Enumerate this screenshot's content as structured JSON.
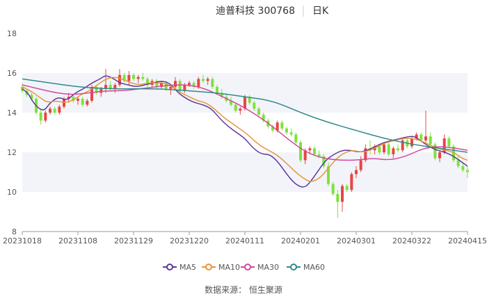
{
  "header": {
    "stock_title": "迪普科技 300768",
    "period": "日K"
  },
  "source": "数据来源： 恒生聚源",
  "colors": {
    "up": "#e84545",
    "down": "#7ee23c",
    "ma5": "#5b3a9a",
    "ma10": "#e8953a",
    "ma30": "#d2489a",
    "ma60": "#2f8a8a",
    "band": "#f2f4f9",
    "axis": "#999999",
    "text": "#555555"
  },
  "chart_data": {
    "type": "candlestick",
    "title": "迪普科技 300768 日K",
    "xlabel": "",
    "ylabel": "",
    "ylim": [
      8,
      18
    ],
    "yticks": [
      8,
      10,
      12,
      14,
      16,
      18
    ],
    "xticks": [
      "20231018",
      "20231108",
      "20231129",
      "20231220",
      "20240111",
      "20240201",
      "20240301",
      "20240322",
      "20240415"
    ],
    "legend": {
      "position": "bottom",
      "entries": [
        "MA5",
        "MA10",
        "MA30",
        "MA60"
      ]
    },
    "grid": false,
    "ma_series": [
      {
        "name": "MA5",
        "points": [
          [
            0,
            15.2
          ],
          [
            2,
            15.0
          ],
          [
            4,
            14.5
          ],
          [
            6,
            14.2
          ],
          [
            8,
            14.1
          ],
          [
            10,
            14.5
          ],
          [
            13,
            14.8
          ],
          [
            16,
            14.6
          ],
          [
            19,
            15.0
          ],
          [
            22,
            15.2
          ],
          [
            25,
            15.5
          ],
          [
            28,
            15.7
          ],
          [
            30,
            15.9
          ],
          [
            33,
            15.7
          ],
          [
            35,
            15.5
          ],
          [
            38,
            15.4
          ],
          [
            41,
            15.3
          ],
          [
            44,
            15.4
          ],
          [
            47,
            15.5
          ],
          [
            50,
            15.6
          ],
          [
            53,
            15.5
          ],
          [
            56,
            15.0
          ],
          [
            59,
            14.7
          ],
          [
            62,
            14.5
          ],
          [
            65,
            14.4
          ],
          [
            68,
            14.2
          ],
          [
            71,
            13.7
          ],
          [
            74,
            13.3
          ],
          [
            77,
            13.0
          ],
          [
            80,
            12.7
          ],
          [
            83,
            12.2
          ],
          [
            86,
            11.9
          ],
          [
            89,
            11.9
          ],
          [
            92,
            11.5
          ],
          [
            95,
            10.9
          ],
          [
            98,
            10.4
          ],
          [
            101,
            10.2
          ],
          [
            103,
            10.4
          ],
          [
            106,
            11.0
          ],
          [
            109,
            11.6
          ],
          [
            112,
            11.9
          ],
          [
            115,
            12.1
          ],
          [
            118,
            12.1
          ],
          [
            121,
            12.0
          ],
          [
            124,
            12.1
          ],
          [
            127,
            12.3
          ],
          [
            130,
            12.5
          ],
          [
            133,
            12.6
          ],
          [
            136,
            12.7
          ],
          [
            139,
            12.8
          ],
          [
            141,
            12.8
          ],
          [
            143,
            12.6
          ],
          [
            146,
            12.3
          ],
          [
            149,
            12.1
          ],
          [
            152,
            12.0
          ],
          [
            155,
            11.8
          ],
          [
            158,
            11.5
          ],
          [
            160,
            11.3
          ]
        ]
      },
      {
        "name": "MA10",
        "points": [
          [
            0,
            15.3
          ],
          [
            3,
            15.1
          ],
          [
            6,
            14.8
          ],
          [
            9,
            14.5
          ],
          [
            12,
            14.6
          ],
          [
            15,
            14.5
          ],
          [
            18,
            14.6
          ],
          [
            21,
            14.9
          ],
          [
            24,
            15.1
          ],
          [
            27,
            15.4
          ],
          [
            30,
            15.7
          ],
          [
            33,
            15.8
          ],
          [
            36,
            15.7
          ],
          [
            39,
            15.5
          ],
          [
            42,
            15.4
          ],
          [
            45,
            15.5
          ],
          [
            48,
            15.5
          ],
          [
            51,
            15.5
          ],
          [
            54,
            15.3
          ],
          [
            57,
            15.0
          ],
          [
            60,
            14.8
          ],
          [
            63,
            14.6
          ],
          [
            66,
            14.5
          ],
          [
            69,
            14.2
          ],
          [
            72,
            13.8
          ],
          [
            75,
            13.5
          ],
          [
            78,
            13.2
          ],
          [
            81,
            12.9
          ],
          [
            84,
            12.5
          ],
          [
            87,
            12.2
          ],
          [
            90,
            12.0
          ],
          [
            93,
            11.7
          ],
          [
            96,
            11.3
          ],
          [
            99,
            10.9
          ],
          [
            102,
            10.6
          ],
          [
            104,
            10.5
          ],
          [
            107,
            10.7
          ],
          [
            110,
            11.2
          ],
          [
            113,
            11.7
          ],
          [
            116,
            12.0
          ],
          [
            119,
            12.1
          ],
          [
            122,
            12.0
          ],
          [
            125,
            12.1
          ],
          [
            128,
            12.3
          ],
          [
            131,
            12.5
          ],
          [
            134,
            12.6
          ],
          [
            137,
            12.7
          ],
          [
            140,
            12.7
          ],
          [
            143,
            12.6
          ],
          [
            146,
            12.4
          ],
          [
            149,
            12.2
          ],
          [
            152,
            12.1
          ],
          [
            155,
            12.0
          ],
          [
            158,
            11.7
          ],
          [
            160,
            11.6
          ]
        ]
      },
      {
        "name": "MA30",
        "points": [
          [
            0,
            15.4
          ],
          [
            6,
            15.2
          ],
          [
            12,
            15.0
          ],
          [
            18,
            14.9
          ],
          [
            24,
            15.0
          ],
          [
            30,
            15.1
          ],
          [
            36,
            15.1
          ],
          [
            42,
            15.2
          ],
          [
            48,
            15.3
          ],
          [
            54,
            15.4
          ],
          [
            60,
            15.4
          ],
          [
            66,
            15.2
          ],
          [
            72,
            14.8
          ],
          [
            78,
            14.4
          ],
          [
            84,
            13.9
          ],
          [
            90,
            13.3
          ],
          [
            96,
            12.6
          ],
          [
            102,
            12.0
          ],
          [
            108,
            11.7
          ],
          [
            114,
            11.6
          ],
          [
            120,
            11.6
          ],
          [
            126,
            11.7
          ],
          [
            132,
            11.6
          ],
          [
            138,
            11.8
          ],
          [
            144,
            12.2
          ],
          [
            150,
            12.3
          ],
          [
            156,
            12.2
          ],
          [
            160,
            12.1
          ]
        ]
      },
      {
        "name": "MA60",
        "points": [
          [
            0,
            15.7
          ],
          [
            10,
            15.5
          ],
          [
            20,
            15.3
          ],
          [
            30,
            15.2
          ],
          [
            40,
            15.2
          ],
          [
            50,
            15.2
          ],
          [
            60,
            15.1
          ],
          [
            70,
            15.0
          ],
          [
            80,
            14.8
          ],
          [
            90,
            14.6
          ],
          [
            100,
            14.0
          ],
          [
            110,
            13.5
          ],
          [
            120,
            13.1
          ],
          [
            130,
            12.7
          ],
          [
            140,
            12.4
          ],
          [
            150,
            12.2
          ],
          [
            160,
            12.0
          ]
        ]
      }
    ],
    "candles": [
      [
        0,
        15.3,
        15.5,
        15.0,
        15.1
      ],
      [
        1,
        15.1,
        15.2,
        14.8,
        14.9
      ],
      [
        2,
        14.9,
        15.0,
        14.6,
        14.7
      ],
      [
        3,
        14.7,
        14.8,
        13.9,
        14.0
      ],
      [
        4,
        14.0,
        14.2,
        13.4,
        13.6
      ],
      [
        5,
        13.6,
        14.1,
        13.5,
        14.0
      ],
      [
        6,
        14.0,
        14.3,
        13.9,
        14.2
      ],
      [
        7,
        14.2,
        14.3,
        13.9,
        14.0
      ],
      [
        8,
        14.0,
        14.4,
        13.9,
        14.3
      ],
      [
        9,
        14.3,
        14.8,
        14.2,
        14.7
      ],
      [
        10,
        14.7,
        15.0,
        14.5,
        14.8
      ],
      [
        11,
        14.8,
        14.9,
        14.5,
        14.6
      ],
      [
        12,
        14.6,
        14.8,
        14.4,
        14.7
      ],
      [
        13,
        14.7,
        14.8,
        14.3,
        14.4
      ],
      [
        14,
        14.4,
        14.7,
        14.3,
        14.6
      ],
      [
        15,
        14.6,
        15.4,
        14.5,
        15.3
      ],
      [
        16,
        15.3,
        15.4,
        14.9,
        15.0
      ],
      [
        17,
        15.0,
        15.3,
        14.8,
        15.2
      ],
      [
        18,
        15.2,
        16.2,
        15.0,
        15.4
      ],
      [
        19,
        15.4,
        15.6,
        15.1,
        15.2
      ],
      [
        20,
        15.2,
        15.5,
        15.0,
        15.4
      ],
      [
        21,
        15.4,
        16.2,
        15.3,
        15.9
      ],
      [
        22,
        15.9,
        16.0,
        15.5,
        15.6
      ],
      [
        23,
        15.6,
        16.1,
        15.4,
        15.9
      ],
      [
        24,
        15.9,
        16.0,
        15.6,
        15.7
      ],
      [
        25,
        15.7,
        15.9,
        15.5,
        15.8
      ],
      [
        26,
        15.8,
        16.0,
        15.6,
        15.7
      ],
      [
        27,
        15.7,
        15.8,
        15.3,
        15.4
      ],
      [
        28,
        15.4,
        15.7,
        15.3,
        15.6
      ],
      [
        29,
        15.6,
        15.7,
        15.2,
        15.3
      ],
      [
        30,
        15.3,
        15.6,
        15.2,
        15.5
      ],
      [
        31,
        15.5,
        15.6,
        15.1,
        15.2
      ],
      [
        32,
        15.2,
        15.4,
        14.9,
        15.3
      ],
      [
        33,
        15.3,
        15.8,
        15.2,
        15.6
      ],
      [
        34,
        15.6,
        15.7,
        15.0,
        15.1
      ],
      [
        35,
        15.1,
        15.5,
        15.0,
        15.4
      ],
      [
        36,
        15.4,
        15.6,
        15.3,
        15.5
      ],
      [
        37,
        15.5,
        15.6,
        15.2,
        15.3
      ],
      [
        38,
        15.3,
        15.8,
        15.2,
        15.7
      ],
      [
        39,
        15.7,
        15.9,
        15.5,
        15.6
      ],
      [
        40,
        15.6,
        15.8,
        15.4,
        15.7
      ],
      [
        41,
        15.7,
        15.8,
        15.2,
        15.3
      ],
      [
        42,
        15.3,
        15.4,
        14.9,
        15.0
      ],
      [
        43,
        15.0,
        15.2,
        14.7,
        14.8
      ],
      [
        44,
        14.8,
        15.0,
        14.5,
        14.6
      ],
      [
        45,
        14.6,
        14.8,
        14.3,
        14.4
      ],
      [
        46,
        14.4,
        14.5,
        14.0,
        14.1
      ],
      [
        47,
        14.1,
        14.3,
        13.9,
        14.2
      ],
      [
        48,
        14.2,
        14.9,
        14.1,
        14.8
      ],
      [
        49,
        14.8,
        14.9,
        14.4,
        14.5
      ],
      [
        50,
        14.5,
        14.6,
        14.1,
        14.2
      ],
      [
        51,
        14.2,
        14.3,
        13.8,
        13.9
      ],
      [
        52,
        13.9,
        14.0,
        13.5,
        13.6
      ],
      [
        53,
        13.6,
        13.7,
        13.2,
        13.3
      ],
      [
        54,
        13.3,
        13.4,
        13.0,
        13.1
      ],
      [
        55,
        13.1,
        13.6,
        13.0,
        13.5
      ],
      [
        56,
        13.5,
        13.6,
        13.1,
        13.2
      ],
      [
        57,
        13.2,
        13.3,
        12.9,
        13.0
      ],
      [
        58,
        13.0,
        13.2,
        12.8,
        12.9
      ],
      [
        59,
        12.9,
        13.0,
        12.4,
        12.5
      ],
      [
        60,
        12.5,
        12.6,
        11.5,
        11.6
      ],
      [
        61,
        11.6,
        12.2,
        11.4,
        12.1
      ],
      [
        62,
        12.1,
        12.3,
        11.9,
        12.2
      ],
      [
        63,
        12.2,
        12.3,
        11.8,
        11.9
      ],
      [
        64,
        11.9,
        12.1,
        11.7,
        11.8
      ],
      [
        65,
        11.8,
        11.9,
        11.2,
        11.3
      ],
      [
        66,
        11.3,
        11.5,
        10.3,
        10.4
      ],
      [
        67,
        10.4,
        10.5,
        9.8,
        9.9
      ],
      [
        68,
        9.9,
        10.1,
        8.7,
        9.5
      ],
      [
        69,
        9.5,
        10.4,
        9.0,
        10.3
      ],
      [
        70,
        10.3,
        10.4,
        10.0,
        10.1
      ],
      [
        71,
        10.1,
        11.0,
        10.0,
        10.9
      ],
      [
        72,
        10.9,
        11.3,
        10.7,
        11.1
      ],
      [
        73,
        11.1,
        11.8,
        11.0,
        11.6
      ],
      [
        74,
        11.6,
        12.4,
        11.5,
        12.2
      ],
      [
        75,
        12.2,
        12.6,
        11.9,
        12.1
      ],
      [
        76,
        12.1,
        12.4,
        11.9,
        12.3
      ],
      [
        77,
        12.3,
        12.4,
        11.9,
        12.0
      ],
      [
        78,
        12.0,
        12.5,
        11.9,
        12.4
      ],
      [
        79,
        12.4,
        12.5,
        11.8,
        11.9
      ],
      [
        80,
        11.9,
        12.3,
        11.7,
        12.2
      ],
      [
        81,
        12.2,
        12.4,
        12.0,
        12.1
      ],
      [
        82,
        12.1,
        12.7,
        12.0,
        12.6
      ],
      [
        83,
        12.6,
        12.7,
        12.2,
        12.3
      ],
      [
        84,
        12.3,
        12.8,
        12.2,
        12.7
      ],
      [
        85,
        12.7,
        13.0,
        12.6,
        12.9
      ],
      [
        86,
        12.9,
        13.0,
        12.5,
        12.6
      ],
      [
        87,
        12.6,
        14.1,
        12.5,
        12.8
      ],
      [
        88,
        12.8,
        13.0,
        12.3,
        12.4
      ],
      [
        89,
        12.4,
        12.5,
        11.6,
        11.7
      ],
      [
        90,
        11.7,
        12.1,
        11.5,
        12.0
      ],
      [
        91,
        12.0,
        12.9,
        11.9,
        12.7
      ],
      [
        92,
        12.7,
        12.8,
        12.2,
        12.3
      ],
      [
        93,
        12.3,
        12.4,
        11.5,
        11.6
      ],
      [
        94,
        11.6,
        11.8,
        11.2,
        11.3
      ],
      [
        95,
        11.3,
        11.5,
        11.0,
        11.1
      ],
      [
        96,
        11.1,
        11.3,
        10.7,
        11.0
      ]
    ],
    "candle_span": [
      0,
      160
    ]
  }
}
